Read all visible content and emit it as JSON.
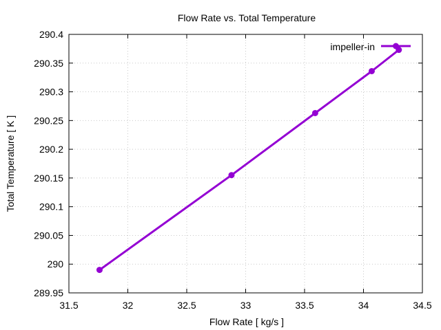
{
  "chart_data": {
    "type": "line",
    "title": "Flow Rate vs. Total Temperature",
    "xlabel": "Flow Rate [ kg/s ]",
    "ylabel": "Total Temperature [ K ]",
    "xlim": [
      31.5,
      34.5
    ],
    "ylim": [
      289.95,
      290.4
    ],
    "xticks": [
      "31.5",
      "32",
      "32.5",
      "33",
      "33.5",
      "34",
      "34.5"
    ],
    "yticks": [
      "289.95",
      "290",
      "290.05",
      "290.1",
      "290.15",
      "290.2",
      "290.25",
      "290.3",
      "290.35",
      "290.4"
    ],
    "grid": true,
    "legend_position": "top-right",
    "series": [
      {
        "name": "impeller-in",
        "color": "#9400d3",
        "x": [
          31.76,
          32.88,
          33.59,
          34.07,
          34.3
        ],
        "y": [
          289.99,
          290.155,
          290.263,
          290.336,
          290.373
        ]
      }
    ]
  }
}
